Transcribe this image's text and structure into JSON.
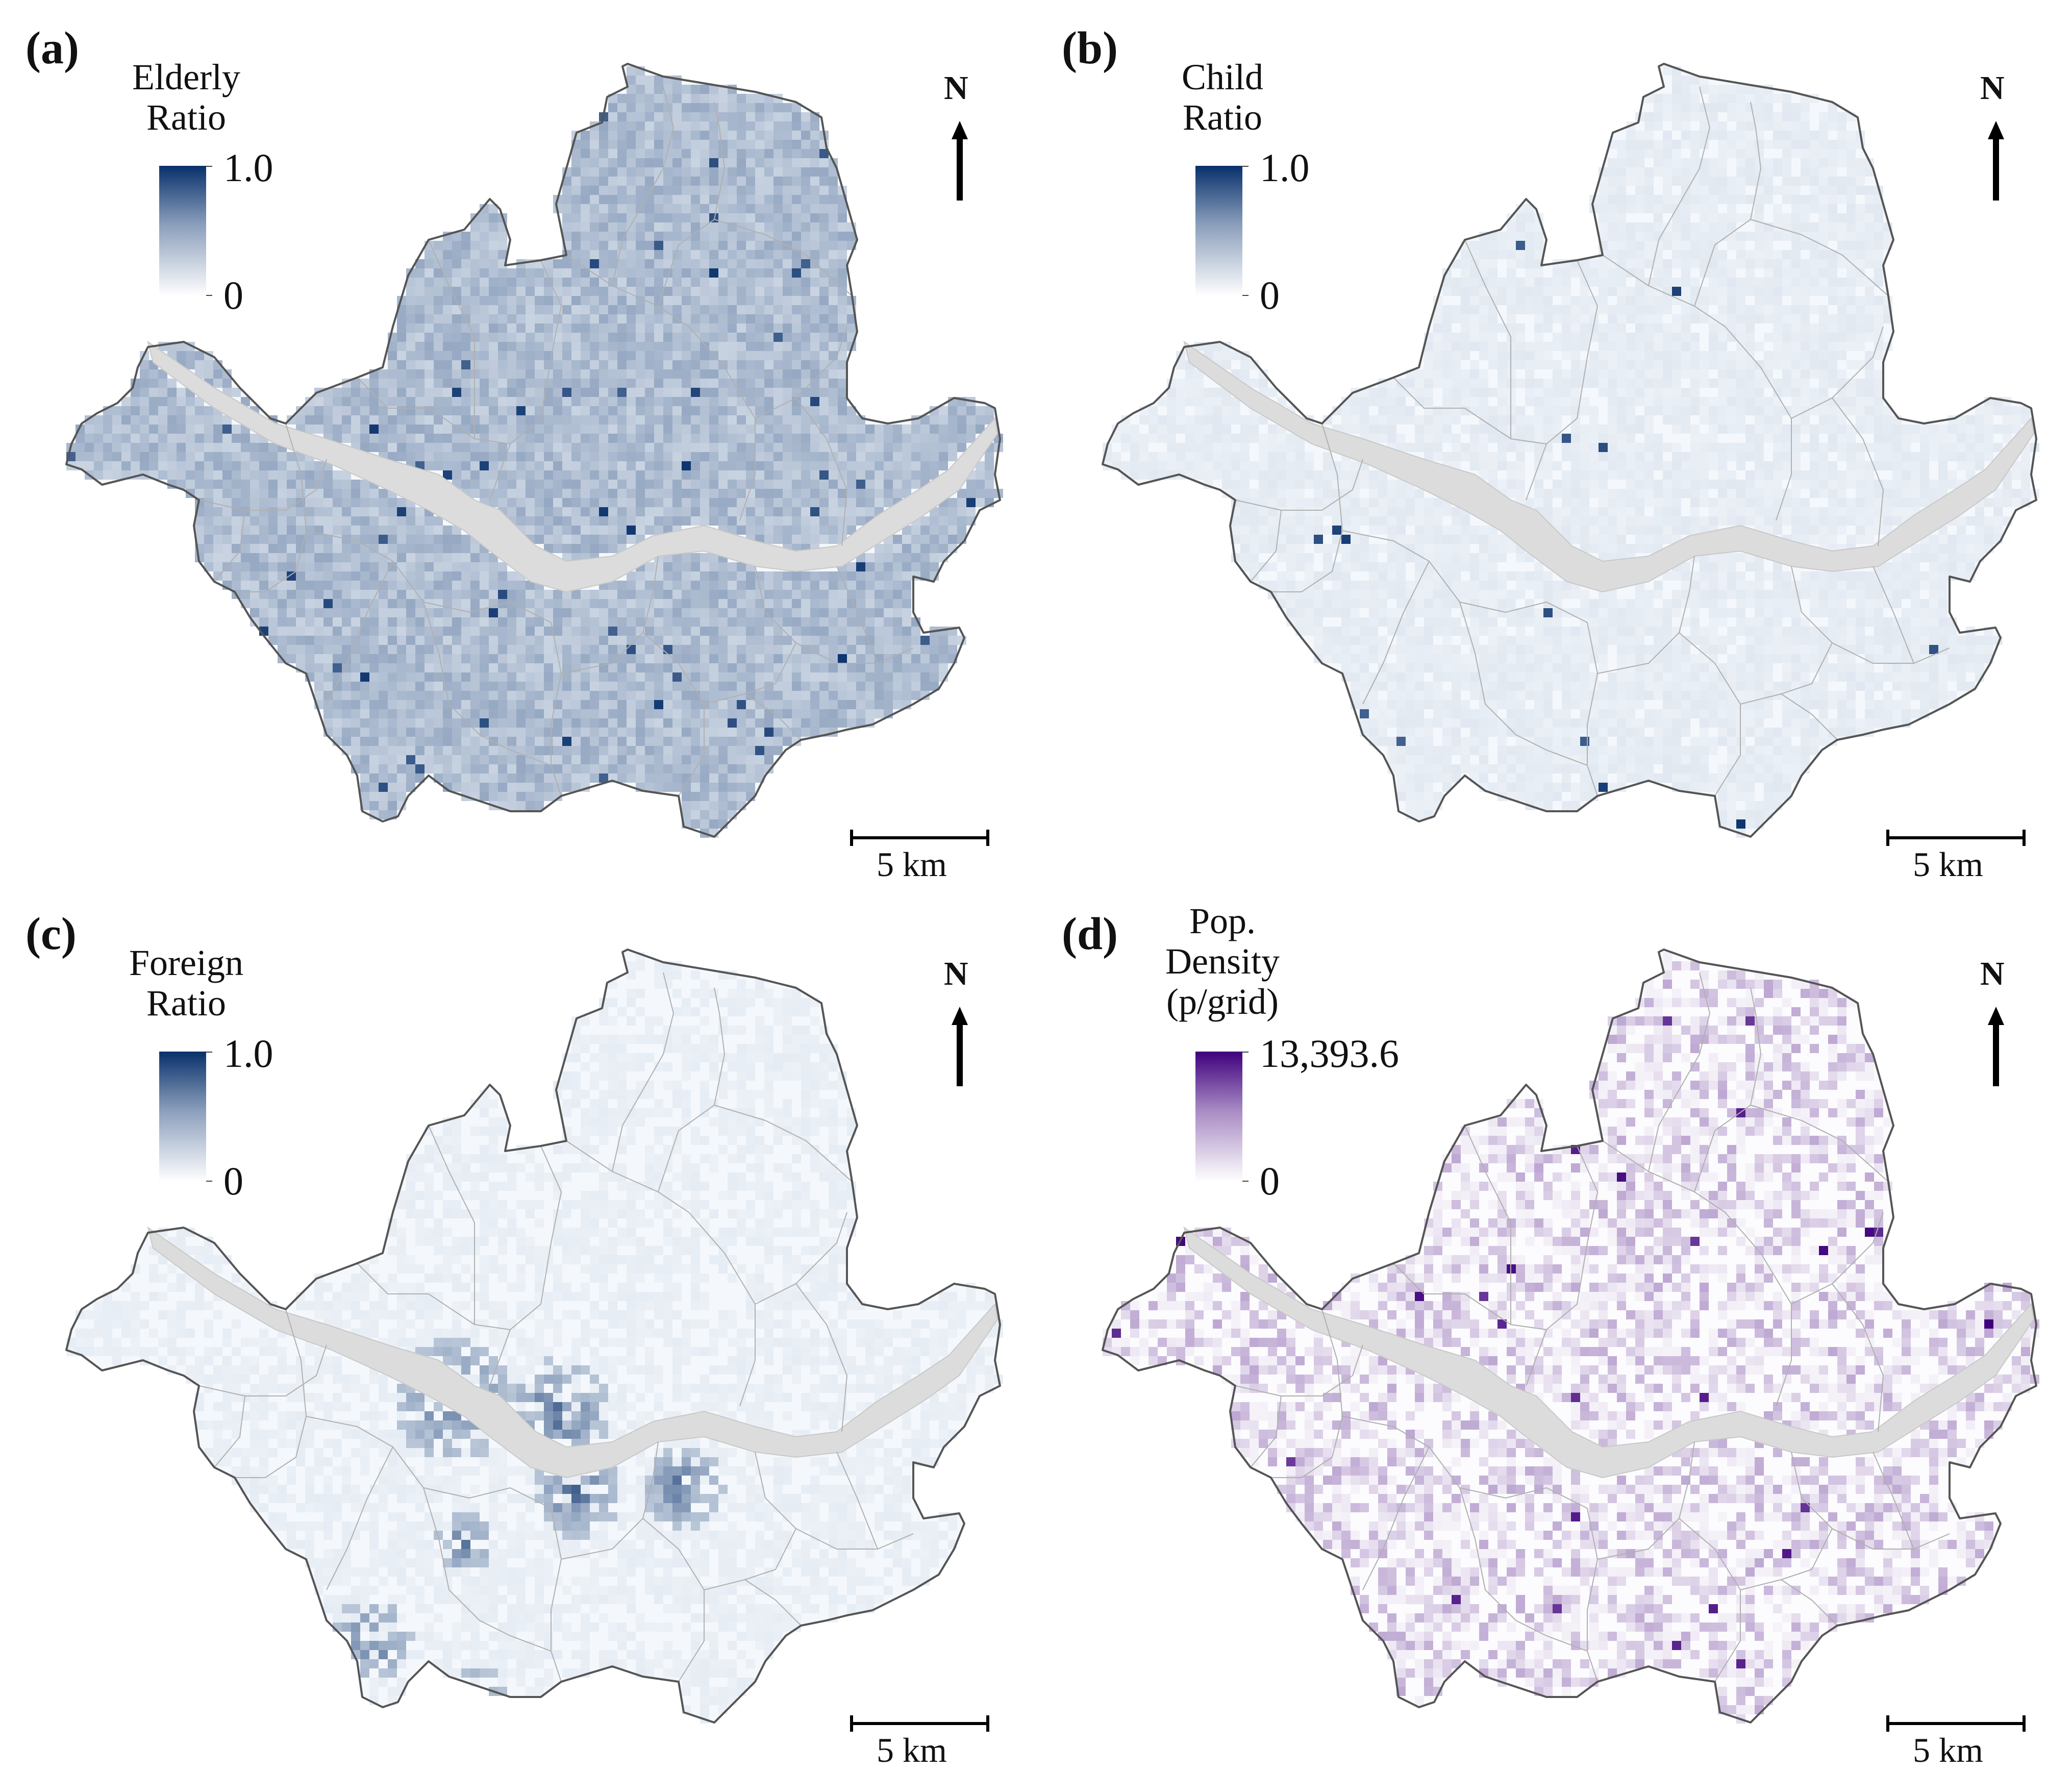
{
  "panels": [
    {
      "id": "a",
      "label": "(a)",
      "legend_title": [
        "Elderly",
        "Ratio"
      ],
      "legend_max": "1.0",
      "legend_min": "0",
      "color_low": "#f4f8fc",
      "color_high": "#08306b",
      "north": "N",
      "scale": "5 km"
    },
    {
      "id": "b",
      "label": "(b)",
      "legend_title": [
        "Child",
        "Ratio"
      ],
      "legend_max": "1.0",
      "legend_min": "0",
      "color_low": "#f4f8fc",
      "color_high": "#08306b",
      "north": "N",
      "scale": "5 km"
    },
    {
      "id": "c",
      "label": "(c)",
      "legend_title": [
        "Foreign",
        "Ratio"
      ],
      "legend_max": "1.0",
      "legend_min": "0",
      "color_low": "#f4f8fc",
      "color_high": "#08306b",
      "north": "N",
      "scale": "5 km"
    },
    {
      "id": "d",
      "label": "(d)",
      "legend_title": [
        "Pop.",
        "Density",
        "(p/grid)"
      ],
      "legend_max": "13,393.6",
      "legend_min": "0",
      "color_low": "#fcfbfd",
      "color_high": "#3f007d",
      "north": "N",
      "scale": "5 km"
    }
  ],
  "colors": {
    "river": "#dcdcdc",
    "boundary": "#555555",
    "district_lines": "#b0b0b0"
  }
}
